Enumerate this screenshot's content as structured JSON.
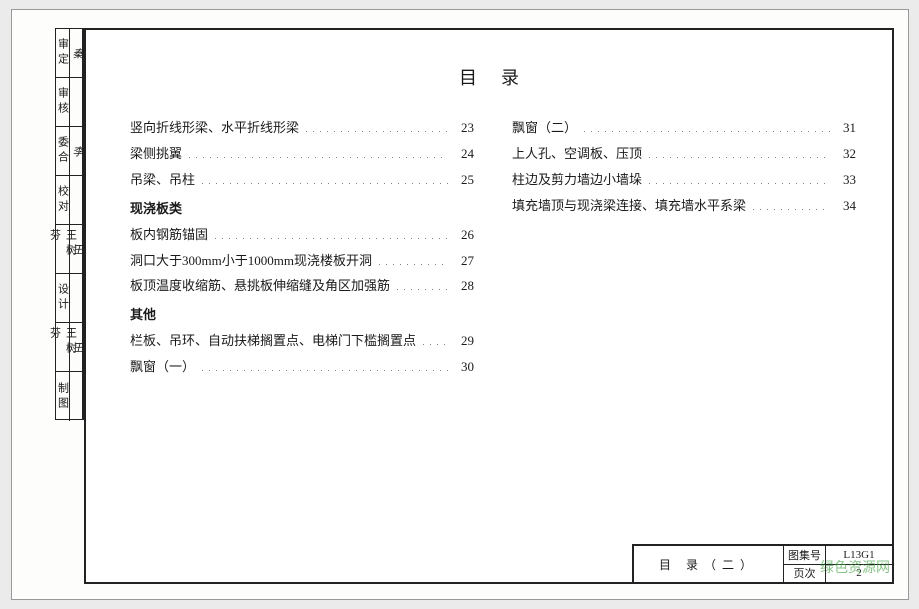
{
  "title": "目录",
  "sidebar": [
    {
      "role": "审定",
      "sig": "秦"
    },
    {
      "role": "审核",
      "sig": ""
    },
    {
      "role": "委合",
      "sig": "李"
    },
    {
      "role": "校对",
      "sig": ""
    },
    {
      "role": "王树芬",
      "sig": "王"
    },
    {
      "role": "设计",
      "sig": ""
    },
    {
      "role": "王树芬",
      "sig": "王"
    },
    {
      "role": "制图",
      "sig": ""
    }
  ],
  "left_column": [
    {
      "type": "row",
      "label": "竖向折线形梁、水平折线形梁",
      "page": "23"
    },
    {
      "type": "row",
      "label": "梁侧挑翼",
      "page": "24"
    },
    {
      "type": "row",
      "label": "吊梁、吊柱",
      "page": "25"
    },
    {
      "type": "section",
      "label": "现浇板类"
    },
    {
      "type": "row",
      "label": "板内钢筋锚固",
      "page": "26"
    },
    {
      "type": "row",
      "label": "洞口大于300mm小于1000mm现浇楼板开洞",
      "page": "27"
    },
    {
      "type": "row",
      "label": "板顶温度收缩筋、悬挑板伸缩缝及角区加强筋",
      "page": "28"
    },
    {
      "type": "section",
      "label": "其他"
    },
    {
      "type": "row",
      "label": "栏板、吊环、自动扶梯搁置点、电梯门下槛搁置点",
      "page": "29"
    },
    {
      "type": "row",
      "label": "飘窗（一）",
      "page": "30"
    }
  ],
  "right_column": [
    {
      "type": "row",
      "label": "飘窗（二）",
      "page": "31"
    },
    {
      "type": "row",
      "label": "上人孔、空调板、压顶",
      "page": "32"
    },
    {
      "type": "row",
      "label": "柱边及剪力墙边小墙垛",
      "page": "33"
    },
    {
      "type": "row",
      "label": "填充墙顶与现浇梁连接、填充墙水平系梁",
      "page": "34"
    }
  ],
  "titleblock": {
    "name": "目 录（二）",
    "drawing_no_label": "图集号",
    "drawing_no": "L13G1",
    "page_label": "页次",
    "page": "2"
  },
  "watermark": "绿色资源网"
}
